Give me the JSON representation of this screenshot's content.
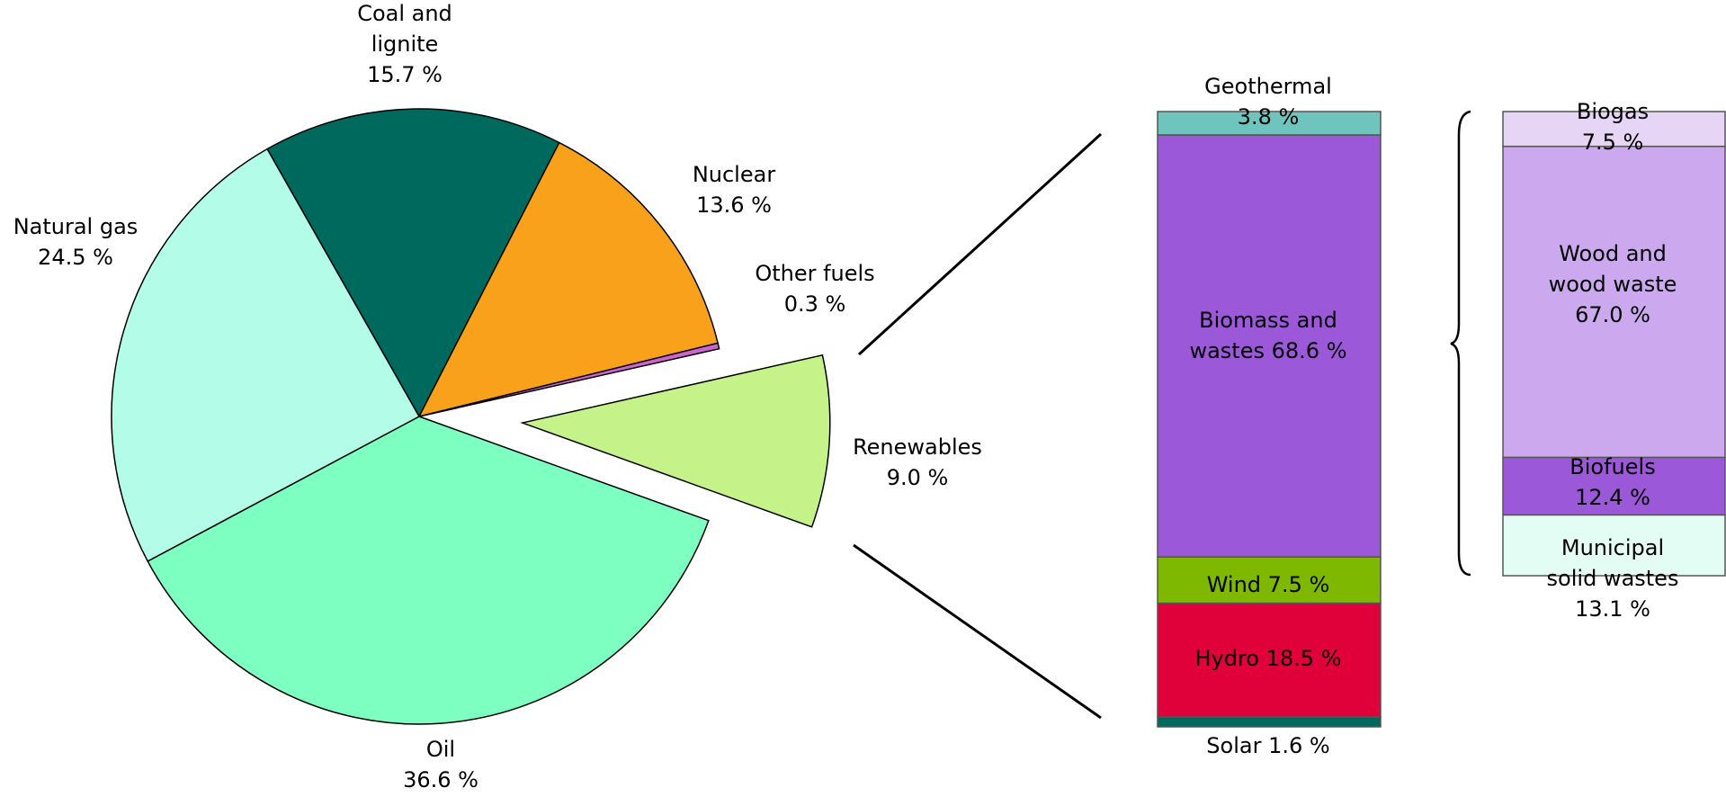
{
  "chart_data": [
    {
      "type": "pie",
      "categories": [
        "Coal and lignite",
        "Nuclear",
        "Other fuels",
        "Renewables",
        "Oil",
        "Natural gas"
      ],
      "values": [
        15.7,
        13.6,
        0.3,
        9.0,
        36.6,
        24.5
      ],
      "value_labels": [
        "15.7 %",
        "13.6 %",
        "0.3 %",
        "9.0 %",
        "36.6 %",
        "24.5 %"
      ],
      "colors": [
        "#00695e",
        "#f9a11b",
        "#cc66cc",
        "#c6f28a",
        "#7dffc1",
        "#b3fde8"
      ]
    },
    {
      "type": "bar",
      "categories": [
        "Solar",
        "Hydro",
        "Wind",
        "Biomass and wastes",
        "Geothermal"
      ],
      "values": [
        1.6,
        18.5,
        7.5,
        68.6,
        3.8
      ],
      "value_labels": [
        "1.6 %",
        "18.5 %",
        "7.5 %",
        "68.6 %",
        "3.8 %"
      ],
      "colors": [
        "#00695e",
        "#e0003a",
        "#7fb800",
        "#9b59d9",
        "#6fc5bd"
      ]
    },
    {
      "type": "bar",
      "categories": [
        "Municipal solid wastes",
        "Biofuels",
        "Wood and wood waste",
        "Biogas"
      ],
      "values": [
        13.1,
        12.4,
        67.0,
        7.5
      ],
      "value_labels": [
        "13.1 %",
        "12.4 %",
        "67.0 %",
        "7.5 %"
      ],
      "colors": [
        "#e4fdf4",
        "#9b59d9",
        "#cca8ee",
        "#e6d5f5"
      ]
    }
  ]
}
